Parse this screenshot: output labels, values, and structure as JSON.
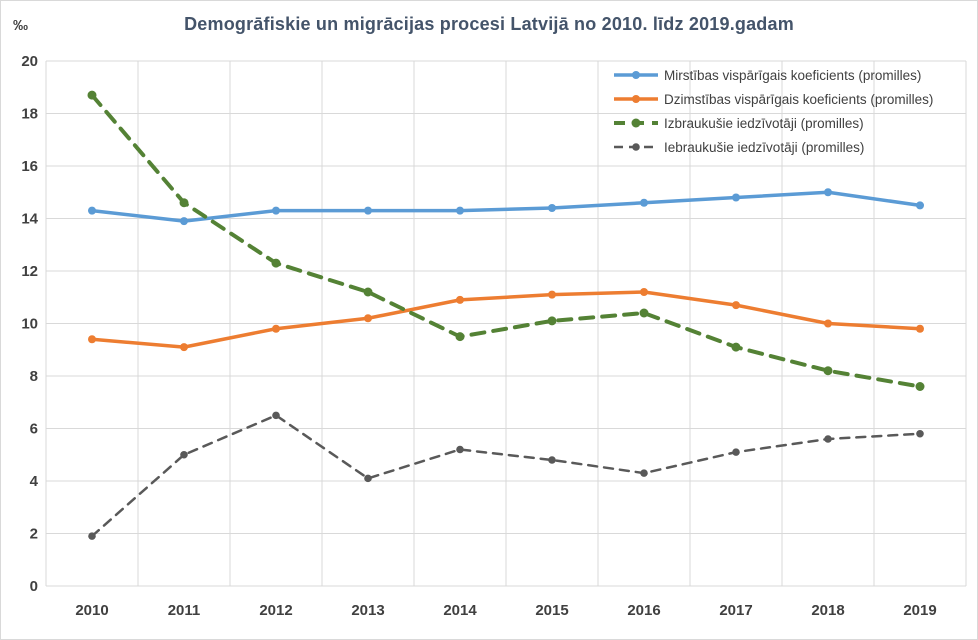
{
  "title": "Demogrāfiskie un migrācijas procesi Latvijā no 2010. līdz 2019.gadam",
  "y_axis_unit": "‰",
  "colors": {
    "grid": "#D9D9D9",
    "axis_text": "#404040",
    "title_text": "#44546A",
    "blue_series": "#5B9BD5",
    "orange_series": "#ED7D31",
    "green_series": "#548235",
    "gray_series": "#595959"
  },
  "chart_data": {
    "type": "line",
    "title": "Demogrāfiskie un migrācijas procesi Latvijā no 2010. līdz 2019.gadam",
    "xlabel": "",
    "ylabel": "‰",
    "categories": [
      "2010",
      "2011",
      "2012",
      "2013",
      "2014",
      "2015",
      "2016",
      "2017",
      "2018",
      "2019"
    ],
    "ylim": [
      0,
      20
    ],
    "yticks": [
      0,
      2,
      4,
      6,
      8,
      10,
      12,
      14,
      16,
      18,
      20
    ],
    "grid": true,
    "legend_position": "top-right-inside",
    "series": [
      {
        "name": "Mirstības vispārīgais koeficients (promilles)",
        "color": "#5B9BD5",
        "dash": "solid",
        "line_width": 3.5,
        "marker_r": 4,
        "dash_pattern": "",
        "values": [
          14.3,
          13.9,
          14.3,
          14.3,
          14.3,
          14.4,
          14.6,
          14.8,
          15.0,
          14.5
        ]
      },
      {
        "name": "Dzimstības vispārīgais koeficients (promilles)",
        "color": "#ED7D31",
        "dash": "solid",
        "line_width": 3.5,
        "marker_r": 4,
        "dash_pattern": "",
        "values": [
          9.4,
          9.1,
          9.8,
          10.2,
          10.9,
          11.1,
          11.2,
          10.7,
          10.0,
          9.8
        ]
      },
      {
        "name": "Izbraukušie iedzīvotāji (promilles)",
        "color": "#548235",
        "dash": "dashed",
        "line_width": 4,
        "marker_r": 4.5,
        "dash_pattern": "13 9",
        "values": [
          18.7,
          14.6,
          12.3,
          11.2,
          9.5,
          10.1,
          10.4,
          9.1,
          8.2,
          7.6
        ]
      },
      {
        "name": "Iebraukušie iedzīvotāji (promilles)",
        "color": "#595959",
        "dash": "dashed",
        "line_width": 2.5,
        "marker_r": 3.8,
        "dash_pattern": "9 7",
        "values": [
          1.9,
          5.0,
          6.5,
          4.1,
          5.2,
          4.8,
          4.3,
          5.1,
          5.6,
          5.8
        ]
      }
    ]
  }
}
